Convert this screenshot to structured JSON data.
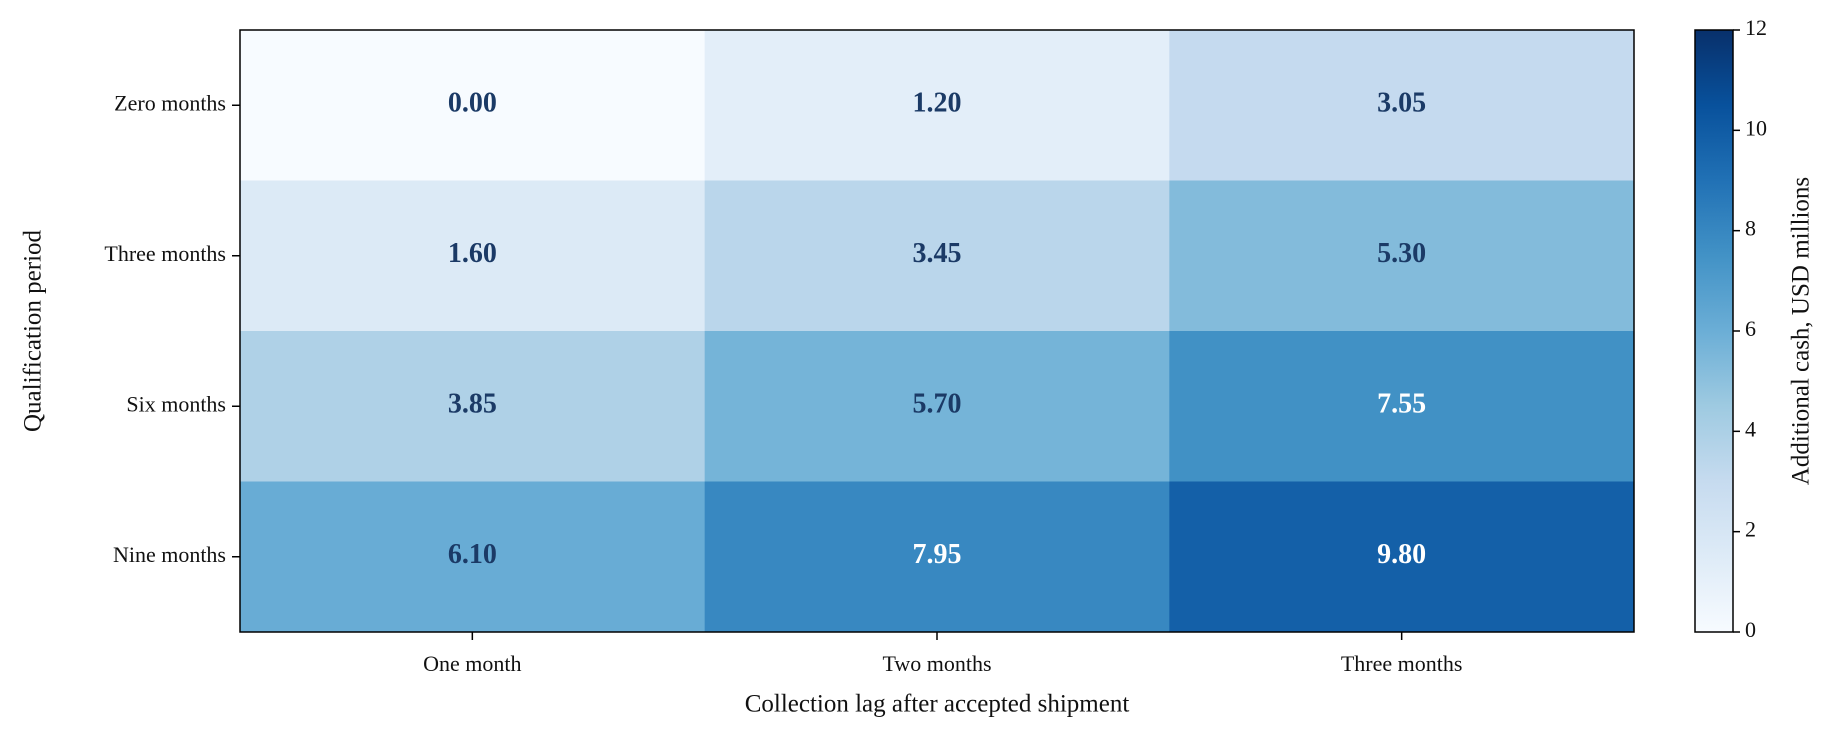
{
  "chart_data": {
    "type": "heatmap",
    "xlabel": "Collection lag after accepted shipment",
    "ylabel": "Qualification period",
    "x_categories": [
      "One month",
      "Two months",
      "Three months"
    ],
    "y_categories": [
      "Zero months",
      "Three months",
      "Six months",
      "Nine months"
    ],
    "values": [
      [
        0,
        1.2,
        3.05
      ],
      [
        1.6,
        3.45,
        5.3
      ],
      [
        3.85,
        5.7,
        7.55
      ],
      [
        6.1,
        7.95,
        9.8
      ]
    ],
    "value_labels": [
      [
        "0.00",
        "1.20",
        "3.05"
      ],
      [
        "1.60",
        "3.45",
        "5.30"
      ],
      [
        "3.85",
        "5.70",
        "7.55"
      ],
      [
        "6.10",
        "7.95",
        "9.80"
      ]
    ],
    "colormap": "Blues",
    "colorbar_label": "Additional cash, USD millions",
    "zlim": [
      0,
      12
    ],
    "zticks": [
      0,
      2,
      4,
      6,
      8,
      10,
      12
    ]
  }
}
